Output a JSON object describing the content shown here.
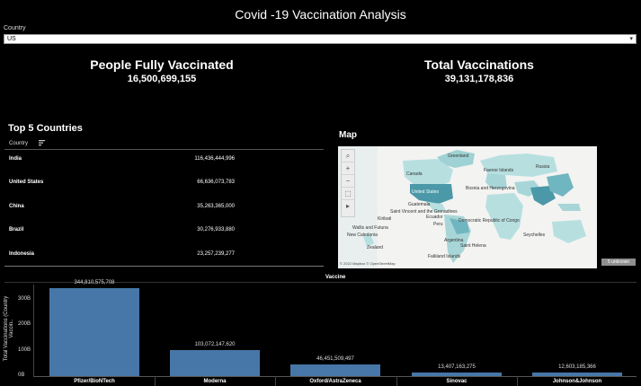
{
  "title": "Covid -19 Vaccination Analysis",
  "filter": {
    "label": "Country",
    "value": "US"
  },
  "kpis": [
    {
      "title": "People Fully Vaccinated",
      "value": "16,500,699,155"
    },
    {
      "title": "Total Vaccinations",
      "value": "39,131,178,836"
    }
  ],
  "top5": {
    "title": "Top 5 Countries",
    "column": "Country",
    "rows": [
      {
        "country": "India",
        "value": "116,436,444,996"
      },
      {
        "country": "United States",
        "value": "66,636,073,783"
      },
      {
        "country": "China",
        "value": "35,263,365,000"
      },
      {
        "country": "Brazil",
        "value": "30,276,933,880"
      },
      {
        "country": "Indonesia",
        "value": "23,257,239,277"
      }
    ]
  },
  "map": {
    "title": "Map",
    "attribution": "© 2022 Mapbox © OpenStreetMap",
    "unknown_badge": "5 unknown",
    "place_labels": [
      "Greenland",
      "Faeroe Islands",
      "Russia",
      "Canada",
      "United States",
      "Bosnia and Herzegovina",
      "Guatemala",
      "Saint Vincent and the Grenadines",
      "Kiribati",
      "Democratic Republic of Congo",
      "Wallis and Futuna",
      "New Caledonia",
      "Saint Helena",
      "Seychelles",
      "Peru",
      "Argentina",
      "Falkland Islands",
      "Zealand",
      "Ecuador"
    ],
    "tools": [
      "search-icon",
      "zoom-in-icon",
      "zoom-out-icon",
      "select-icon",
      "play-icon"
    ],
    "accent": "#4a98a8"
  },
  "chart_data": {
    "type": "bar",
    "title": "Vaccine",
    "ylabel": "Total Vaccinations (Country Vaccin..",
    "categories": [
      "Pfizer/BioNTech",
      "Moderna",
      "Oxford/AstraZeneca",
      "Sinovac",
      "Johnson&Johnson"
    ],
    "values": [
      344810575708,
      103072147620,
      46451509497,
      13407163275,
      12603185366
    ],
    "value_labels": [
      "344,810,575,708",
      "103,072,147,620",
      "46,451,509,497",
      "13,407,163,275",
      "12,603,185,366"
    ],
    "y_ticks": [
      "300B",
      "200B",
      "100B",
      "0B"
    ],
    "y_tick_values": [
      300000000000,
      200000000000,
      100000000000,
      0
    ],
    "ylim": [
      0,
      360000000000
    ],
    "bar_color": "#4677a8"
  }
}
